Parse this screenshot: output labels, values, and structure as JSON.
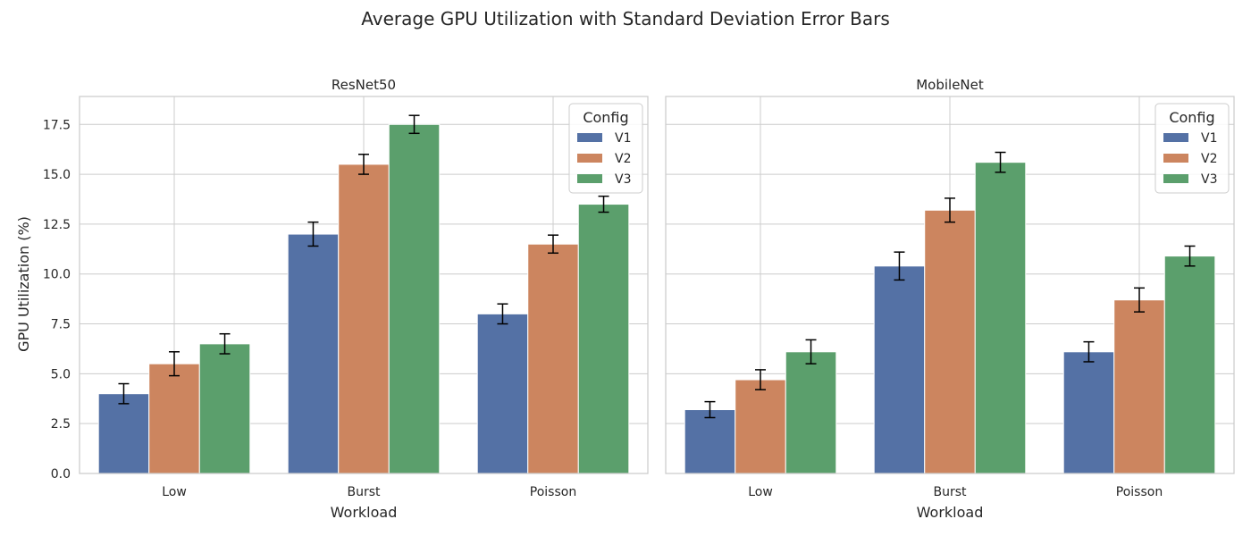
{
  "suptitle": "Average GPU Utilization with Standard Deviation Error Bars",
  "ylabel": "GPU Utilization (%)",
  "xlabel": "Workload",
  "legend": {
    "title": "Config",
    "entries": [
      "V1",
      "V2",
      "V3"
    ],
    "colors": [
      "#5471a5",
      "#cc855f",
      "#5b9f6c"
    ],
    "placement": "top-right"
  },
  "y_ticks": [
    "0.0",
    "2.5",
    "5.0",
    "7.5",
    "10.0",
    "12.5",
    "15.0",
    "17.5"
  ],
  "chart_data": [
    {
      "type": "bar",
      "title": "ResNet50",
      "categories": [
        "Low",
        "Burst",
        "Poisson"
      ],
      "ylim": [
        0,
        18.9
      ],
      "grid": true,
      "series": [
        {
          "name": "V1",
          "values": [
            4.0,
            12.0,
            8.0
          ],
          "std": [
            0.5,
            0.6,
            0.5
          ]
        },
        {
          "name": "V2",
          "values": [
            5.5,
            15.5,
            11.5
          ],
          "std": [
            0.6,
            0.5,
            0.45
          ]
        },
        {
          "name": "V3",
          "values": [
            6.5,
            17.5,
            13.5
          ],
          "std": [
            0.5,
            0.45,
            0.4
          ]
        }
      ]
    },
    {
      "type": "bar",
      "title": "MobileNet",
      "categories": [
        "Low",
        "Burst",
        "Poisson"
      ],
      "ylim": [
        0,
        18.9
      ],
      "grid": true,
      "series": [
        {
          "name": "V1",
          "values": [
            3.2,
            10.4,
            6.1
          ],
          "std": [
            0.4,
            0.7,
            0.5
          ]
        },
        {
          "name": "V2",
          "values": [
            4.7,
            13.2,
            8.7
          ],
          "std": [
            0.5,
            0.6,
            0.6
          ]
        },
        {
          "name": "V3",
          "values": [
            6.1,
            15.6,
            10.9
          ],
          "std": [
            0.6,
            0.5,
            0.5
          ]
        }
      ]
    }
  ]
}
